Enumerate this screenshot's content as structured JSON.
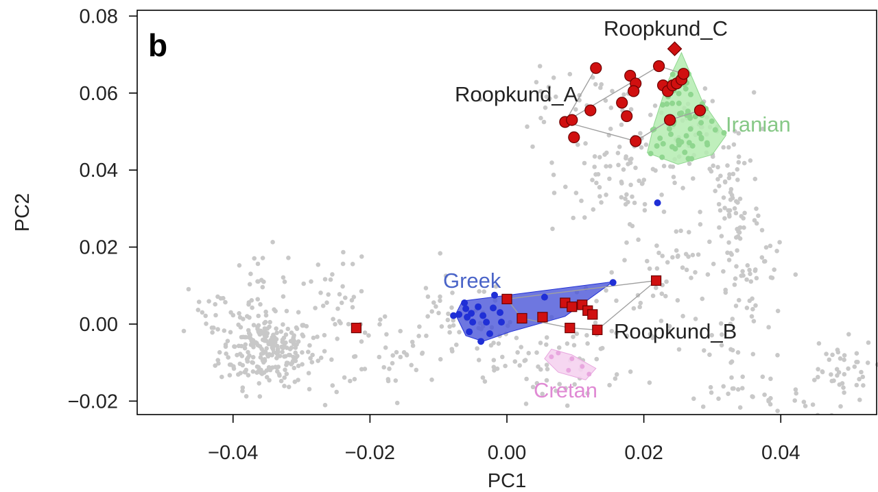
{
  "chart_data": {
    "type": "scatter",
    "panel_label": "b",
    "xlabel": "PC1",
    "ylabel": "PC2",
    "xlim": [
      -0.054,
      0.054
    ],
    "ylim": [
      -0.0235,
      0.0815
    ],
    "xticks": [
      {
        "value": -0.04,
        "label": "−0.04"
      },
      {
        "value": -0.02,
        "label": "−0.02"
      },
      {
        "value": 0.0,
        "label": "0.00"
      },
      {
        "value": 0.02,
        "label": "0.02"
      },
      {
        "value": 0.04,
        "label": "0.04"
      }
    ],
    "yticks": [
      {
        "value": -0.02,
        "label": "−0.02"
      },
      {
        "value": 0.0,
        "label": "0.00"
      },
      {
        "value": 0.02,
        "label": "0.02"
      },
      {
        "value": 0.04,
        "label": "0.04"
      },
      {
        "value": 0.06,
        "label": "0.06"
      },
      {
        "value": 0.08,
        "label": "0.08"
      }
    ],
    "grid": false,
    "labels": {
      "roopkund_a": "Roopkund_A",
      "roopkund_b": "Roopkund_B",
      "roopkund_c": "Roopkund_C",
      "iranian": "Iranian",
      "greek": "Greek",
      "cretan": "Cretan"
    },
    "colors": {
      "background": "#c8c8c8",
      "roopkund": "#d01010",
      "greek": "#1f2fd6",
      "greek_fill": "#4a55d8",
      "iranian": "#8fd68f",
      "iranian_fill": "#b4ecb0",
      "cretan": "#e8a6df",
      "cretan_fill": "#f5d3ef",
      "connector": "#a0a0a0"
    },
    "hulls": {
      "iranian": [
        [
          0.0255,
          0.0705
        ],
        [
          0.0285,
          0.058
        ],
        [
          0.032,
          0.049
        ],
        [
          0.03,
          0.044
        ],
        [
          0.025,
          0.0415
        ],
        [
          0.0205,
          0.0445
        ],
        [
          0.0215,
          0.052
        ],
        [
          0.0235,
          0.063
        ]
      ],
      "greek": [
        [
          -0.0065,
          0.006
        ],
        [
          0.0155,
          0.011
        ],
        [
          0.0085,
          0.002
        ],
        [
          0.0005,
          -0.002
        ],
        [
          -0.0035,
          -0.0045
        ],
        [
          -0.006,
          -0.003
        ],
        [
          -0.0075,
          0.0025
        ]
      ],
      "cretan": [
        [
          0.0065,
          -0.0065
        ],
        [
          0.0095,
          -0.008
        ],
        [
          0.013,
          -0.0115
        ],
        [
          0.0115,
          -0.0145
        ],
        [
          0.0075,
          -0.0125
        ],
        [
          0.0055,
          -0.009
        ]
      ]
    },
    "series": [
      {
        "name": "Roopkund_A",
        "marker": "circle",
        "points": [
          [
            0.0085,
            0.0525
          ],
          [
            0.0095,
            0.053
          ],
          [
            0.0098,
            0.0485
          ],
          [
            0.0122,
            0.0555
          ],
          [
            0.013,
            0.0665
          ],
          [
            0.0168,
            0.0575
          ],
          [
            0.0175,
            0.054
          ],
          [
            0.018,
            0.0645
          ],
          [
            0.0188,
            0.0625
          ],
          [
            0.0185,
            0.0605
          ],
          [
            0.0188,
            0.0475
          ],
          [
            0.0222,
            0.067
          ],
          [
            0.0228,
            0.062
          ],
          [
            0.0235,
            0.0605
          ],
          [
            0.0242,
            0.062
          ],
          [
            0.0248,
            0.0625
          ],
          [
            0.0255,
            0.0635
          ],
          [
            0.0258,
            0.065
          ],
          [
            0.0238,
            0.053
          ],
          [
            0.0282,
            0.0555
          ]
        ]
      },
      {
        "name": "Roopkund_B",
        "marker": "square",
        "points": [
          [
            -0.022,
            -0.001
          ],
          [
            0.0,
            0.0065
          ],
          [
            0.0022,
            0.0015
          ],
          [
            0.0052,
            0.0018
          ],
          [
            0.0085,
            0.0055
          ],
          [
            0.0095,
            0.0045
          ],
          [
            0.011,
            0.005
          ],
          [
            0.0118,
            0.0035
          ],
          [
            0.0125,
            0.0025
          ],
          [
            0.0092,
            -0.001
          ],
          [
            0.0132,
            -0.0015
          ],
          [
            0.0218,
            0.0113
          ]
        ]
      },
      {
        "name": "Roopkund_C",
        "marker": "diamond",
        "points": [
          [
            0.0245,
            0.0715
          ]
        ]
      },
      {
        "name": "Greek",
        "marker": "dot",
        "points": [
          [
            -0.0078,
            0.0022
          ],
          [
            -0.007,
            0.0025
          ],
          [
            -0.0062,
            0.0055
          ],
          [
            -0.006,
            0.004
          ],
          [
            -0.0058,
            0.0018
          ],
          [
            -0.0052,
            0.0028
          ],
          [
            -0.005,
            0.0005
          ],
          [
            -0.0055,
            -0.002
          ],
          [
            -0.0042,
            0.0045
          ],
          [
            -0.0035,
            0.0022
          ],
          [
            -0.003,
            0.0005
          ],
          [
            -0.002,
            0.0042
          ],
          [
            -0.0018,
            0.0075
          ],
          [
            -0.001,
            0.003
          ],
          [
            -0.0008,
            0.0005
          ],
          [
            -0.0038,
            -0.0045
          ],
          [
            -0.0025,
            -0.0025
          ],
          [
            0.0055,
            0.007
          ],
          [
            0.0155,
            0.0108
          ],
          [
            0.022,
            0.0315
          ]
        ]
      }
    ]
  }
}
